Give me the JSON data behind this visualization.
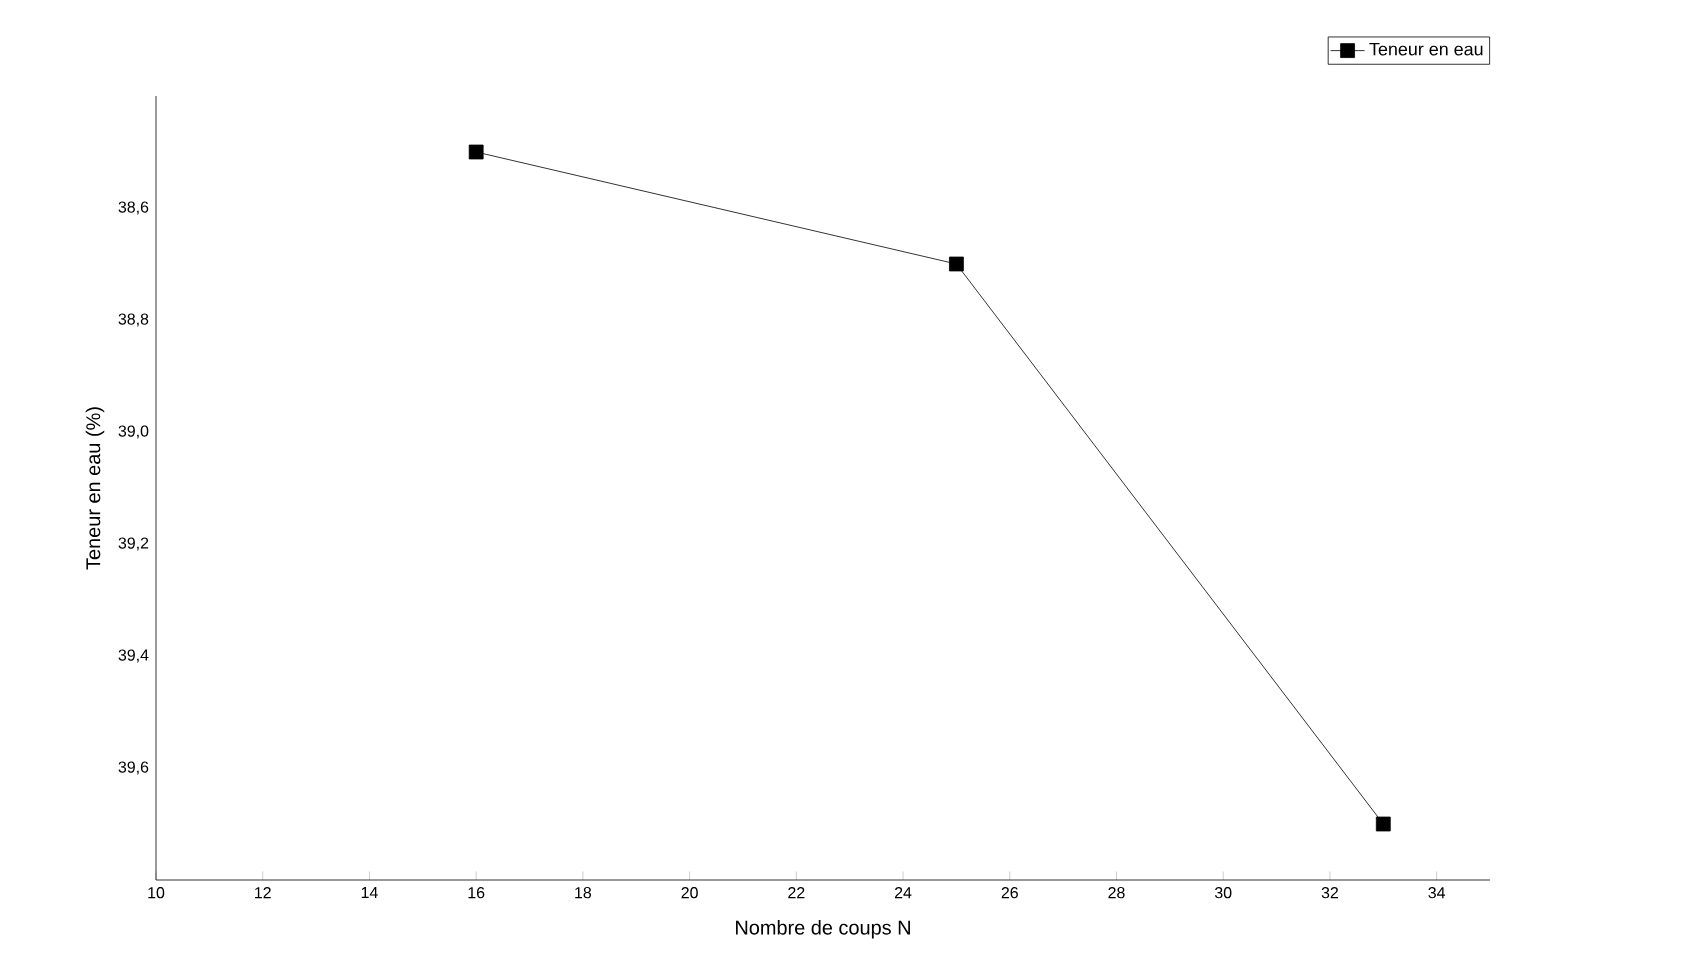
{
  "chart_data": {
    "type": "line",
    "xlabel": "Nombre de coups N",
    "ylabel": "Teneur en eau (%)",
    "x": [
      16,
      25,
      33
    ],
    "series": [
      {
        "name": "Teneur en eau",
        "color": "#000000",
        "values": [
          38.5,
          38.7,
          39.7
        ]
      }
    ],
    "xlim": [
      10,
      35
    ],
    "xticks": [
      10,
      12,
      14,
      16,
      18,
      20,
      22,
      24,
      26,
      28,
      30,
      32,
      34
    ],
    "ylim": [
      39.8,
      38.4
    ],
    "yticks": [
      {
        "value": 38.6,
        "label": "38,6"
      },
      {
        "value": 38.8,
        "label": "38,8"
      },
      {
        "value": 39.0,
        "label": "39,0"
      },
      {
        "value": 39.2,
        "label": "39,2"
      },
      {
        "value": 39.4,
        "label": "39,4"
      },
      {
        "value": 39.6,
        "label": "39,6"
      }
    ],
    "marker": "square",
    "line_style": "solid",
    "legend": "top right",
    "grid": false
  }
}
